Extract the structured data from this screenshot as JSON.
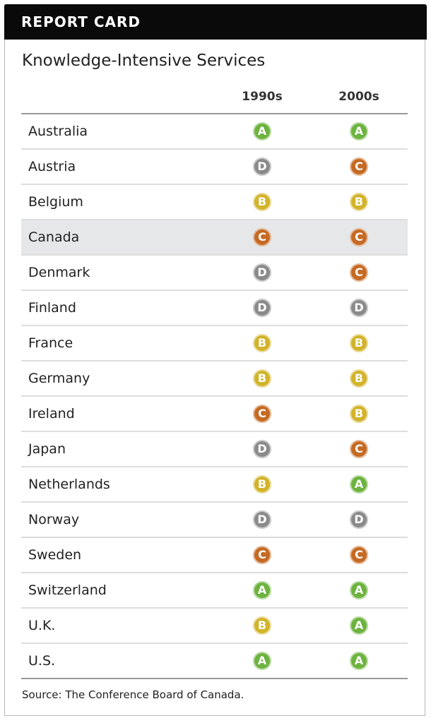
{
  "header": {
    "title": "REPORT CARD"
  },
  "subtitle": "Knowledge-Intensive Services",
  "table": {
    "columns": [
      "1990s",
      "2000s"
    ],
    "rows": [
      [
        "Australia",
        "A",
        "A"
      ],
      [
        "Austria",
        "D",
        "C"
      ],
      [
        "Belgium",
        "B",
        "B"
      ],
      [
        "Canada",
        "C",
        "C"
      ],
      [
        "Denmark",
        "D",
        "C"
      ],
      [
        "Finland",
        "D",
        "D"
      ],
      [
        "France",
        "B",
        "B"
      ],
      [
        "Germany",
        "B",
        "B"
      ],
      [
        "Ireland",
        "C",
        "B"
      ],
      [
        "Japan",
        "D",
        "C"
      ],
      [
        "Netherlands",
        "B",
        "A"
      ],
      [
        "Norway",
        "D",
        "D"
      ],
      [
        "Sweden",
        "C",
        "C"
      ],
      [
        "Switzerland",
        "A",
        "A"
      ],
      [
        "U.K.",
        "B",
        "A"
      ],
      [
        "U.S.",
        "A",
        "A"
      ]
    ],
    "highlight_row": 3,
    "grade_colors": {
      "A": "#6db33f",
      "B": "#d2b32a",
      "C": "#c56a24",
      "D": "#8a8a8a"
    }
  },
  "source": "Source: The Conference Board of Canada."
}
